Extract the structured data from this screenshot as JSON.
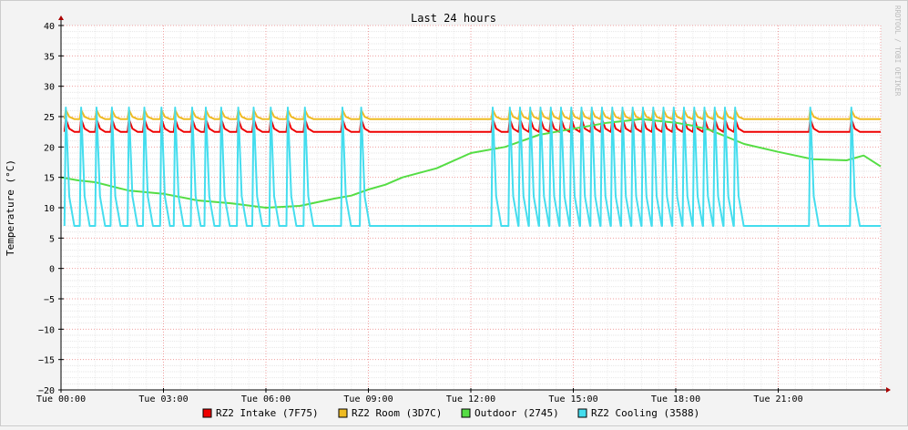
{
  "chart_data": {
    "type": "line",
    "title": "Last 24 hours",
    "ylabel": "Temperature (°C)",
    "watermark": "RRDTOOL / TOBI OETIKER",
    "ylim": [
      -20,
      40
    ],
    "xlim_hours": [
      0,
      24
    ],
    "y_ticks": [
      "40",
      "35",
      "30",
      "25",
      "20",
      "15",
      "10",
      "5",
      "0",
      "−5",
      "−10",
      "−15",
      "−20"
    ],
    "x_ticks": [
      "Tue 00:00",
      "Tue 03:00",
      "Tue 06:00",
      "Tue 09:00",
      "Tue 12:00",
      "Tue 15:00",
      "Tue 18:00",
      "Tue 21:00"
    ],
    "grid": true,
    "legend_position": "bottom",
    "series": [
      {
        "name": "RZ2 Intake (7F75)",
        "color": "#ee0000",
        "baseline": 22.5,
        "spike_peak": 24.6,
        "spike_times": [
          0.1,
          0.55,
          1.0,
          1.45,
          1.95,
          2.4,
          2.9,
          3.3,
          3.8,
          4.2,
          4.65,
          5.15,
          5.6,
          6.1,
          6.6,
          7.1,
          8.2,
          8.75,
          12.6,
          13.1,
          13.4,
          13.7,
          14.0,
          14.3,
          14.6,
          14.9,
          15.2,
          15.5,
          15.8,
          16.1,
          16.4,
          16.7,
          17.0,
          17.3,
          17.6,
          17.9,
          18.2,
          18.5,
          18.8,
          19.1,
          19.4,
          19.7,
          21.9,
          23.1
        ]
      },
      {
        "name": "RZ2 Room (3D7C)",
        "color": "#eebb22",
        "baseline": 24.6,
        "spike_peak": 26.1,
        "spike_times": [
          0.1,
          0.55,
          1.0,
          1.45,
          1.95,
          2.4,
          2.9,
          3.3,
          3.8,
          4.2,
          4.65,
          5.15,
          5.6,
          6.1,
          6.6,
          7.1,
          8.2,
          8.75,
          12.6,
          13.1,
          13.4,
          13.7,
          14.0,
          14.3,
          14.6,
          14.9,
          15.2,
          15.5,
          15.8,
          16.1,
          16.4,
          16.7,
          17.0,
          17.3,
          17.6,
          17.9,
          18.2,
          18.5,
          18.8,
          19.1,
          19.4,
          19.7,
          21.9,
          23.1
        ]
      },
      {
        "name": "Outdoor (2745)",
        "color": "#55dd44",
        "x": [
          0,
          0.5,
          1.0,
          1.5,
          2.0,
          3.0,
          4.0,
          5.0,
          6.0,
          7.0,
          8.0,
          8.5,
          9.0,
          9.5,
          10.0,
          11.0,
          12.0,
          13.0,
          14.0,
          15.0,
          16.0,
          17.0,
          18.0,
          18.5,
          19.0,
          20.0,
          21.0,
          21.5,
          22.0,
          23.0,
          23.5,
          24.0
        ],
        "values": [
          15.0,
          14.5,
          14.2,
          13.5,
          12.8,
          12.3,
          11.2,
          10.7,
          10.0,
          10.3,
          11.5,
          12.0,
          13.0,
          13.8,
          15.0,
          16.5,
          19.0,
          20.0,
          22.0,
          23.0,
          24.0,
          24.6,
          24.0,
          23.5,
          22.8,
          20.5,
          19.2,
          18.6,
          18.0,
          17.8,
          18.6,
          16.8
        ]
      },
      {
        "name": "RZ2 Cooling (3588)",
        "color": "#44ddee",
        "baseline": 7.0,
        "spike_peak": 26.5,
        "spike_times": [
          0.1,
          0.55,
          1.0,
          1.45,
          1.95,
          2.4,
          2.9,
          3.3,
          3.8,
          4.2,
          4.65,
          5.15,
          5.6,
          6.1,
          6.6,
          7.1,
          8.2,
          8.75,
          12.6,
          13.1,
          13.4,
          13.7,
          14.0,
          14.3,
          14.6,
          14.9,
          15.2,
          15.5,
          15.8,
          16.1,
          16.4,
          16.7,
          17.0,
          17.3,
          17.6,
          17.9,
          18.2,
          18.5,
          18.8,
          19.1,
          19.4,
          19.7,
          21.9,
          23.1
        ]
      }
    ]
  }
}
